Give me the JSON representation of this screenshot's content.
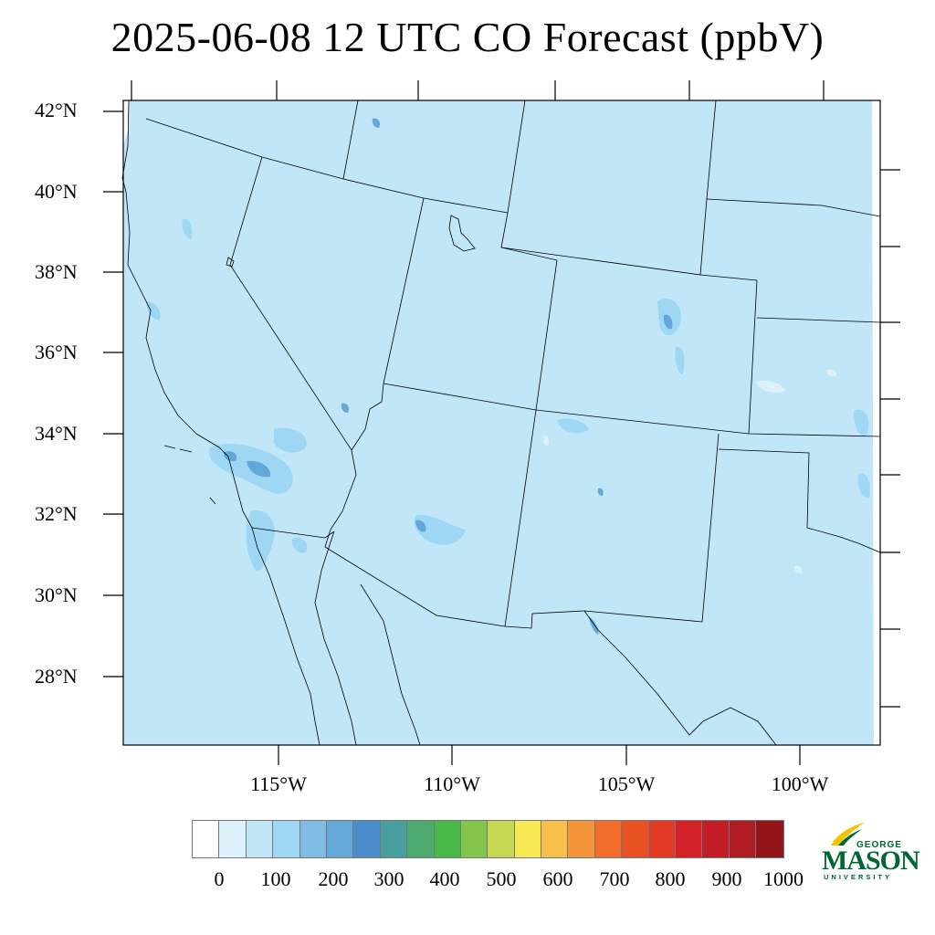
{
  "title": "2025-06-08 12 UTC CO Forecast (ppbV)",
  "map": {
    "lat_labels": [
      "42°N",
      "40°N",
      "38°N",
      "36°N",
      "34°N",
      "32°N",
      "30°N",
      "28°N"
    ],
    "lon_labels": [
      "115°W",
      "110°W",
      "105°W",
      "100°W"
    ],
    "background_color": "#c0e6f8",
    "ocean_color": "#c0e6f8"
  },
  "colorbar": {
    "tick_labels": [
      "0",
      "100",
      "200",
      "300",
      "400",
      "500",
      "600",
      "700",
      "800",
      "900",
      "1000"
    ],
    "colors": [
      "#ffffff",
      "#ddf1fb",
      "#c0e6f8",
      "#9dd7f4",
      "#7fbde4",
      "#64a8d9",
      "#4b8ccb",
      "#479f9f",
      "#4caa6e",
      "#47b949",
      "#84c54c",
      "#c6d852",
      "#f9e954",
      "#f8c04a",
      "#f5953a",
      "#f26d2b",
      "#ea5224",
      "#e23a24",
      "#d42027",
      "#c21d25",
      "#ae1b22",
      "#931519"
    ]
  },
  "logo": {
    "line1": "GEORGE",
    "line2": "MASON",
    "line3": "UNIVERSITY",
    "color": "#006633",
    "accent": "#f3c300"
  }
}
